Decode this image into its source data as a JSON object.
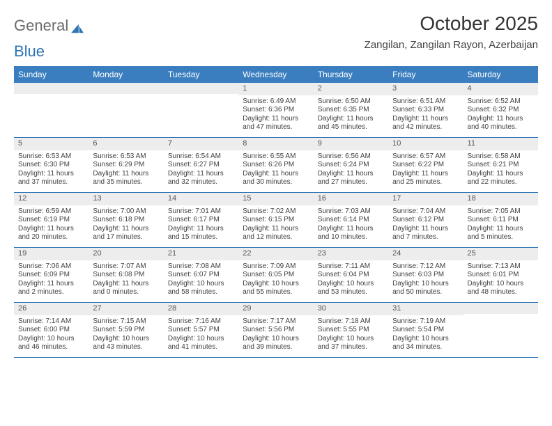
{
  "brand": {
    "part1": "General",
    "part2": "Blue"
  },
  "title": "October 2025",
  "location": "Zangilan, Zangilan Rayon, Azerbaijan",
  "colors": {
    "header_bg": "#3a7ebf",
    "header_text": "#ffffff",
    "daynum_bg": "#ededed",
    "border": "#2f74b5",
    "body_text": "#3f3f3f",
    "title_text": "#333333",
    "logo_gray": "#6b6b6b",
    "logo_blue": "#2f74b5"
  },
  "weekdays": [
    "Sunday",
    "Monday",
    "Tuesday",
    "Wednesday",
    "Thursday",
    "Friday",
    "Saturday"
  ],
  "weeks": [
    [
      {
        "n": "",
        "sr": "",
        "ss": "",
        "dl": ""
      },
      {
        "n": "",
        "sr": "",
        "ss": "",
        "dl": ""
      },
      {
        "n": "",
        "sr": "",
        "ss": "",
        "dl": ""
      },
      {
        "n": "1",
        "sr": "Sunrise: 6:49 AM",
        "ss": "Sunset: 6:36 PM",
        "dl": "Daylight: 11 hours and 47 minutes."
      },
      {
        "n": "2",
        "sr": "Sunrise: 6:50 AM",
        "ss": "Sunset: 6:35 PM",
        "dl": "Daylight: 11 hours and 45 minutes."
      },
      {
        "n": "3",
        "sr": "Sunrise: 6:51 AM",
        "ss": "Sunset: 6:33 PM",
        "dl": "Daylight: 11 hours and 42 minutes."
      },
      {
        "n": "4",
        "sr": "Sunrise: 6:52 AM",
        "ss": "Sunset: 6:32 PM",
        "dl": "Daylight: 11 hours and 40 minutes."
      }
    ],
    [
      {
        "n": "5",
        "sr": "Sunrise: 6:53 AM",
        "ss": "Sunset: 6:30 PM",
        "dl": "Daylight: 11 hours and 37 minutes."
      },
      {
        "n": "6",
        "sr": "Sunrise: 6:53 AM",
        "ss": "Sunset: 6:29 PM",
        "dl": "Daylight: 11 hours and 35 minutes."
      },
      {
        "n": "7",
        "sr": "Sunrise: 6:54 AM",
        "ss": "Sunset: 6:27 PM",
        "dl": "Daylight: 11 hours and 32 minutes."
      },
      {
        "n": "8",
        "sr": "Sunrise: 6:55 AM",
        "ss": "Sunset: 6:26 PM",
        "dl": "Daylight: 11 hours and 30 minutes."
      },
      {
        "n": "9",
        "sr": "Sunrise: 6:56 AM",
        "ss": "Sunset: 6:24 PM",
        "dl": "Daylight: 11 hours and 27 minutes."
      },
      {
        "n": "10",
        "sr": "Sunrise: 6:57 AM",
        "ss": "Sunset: 6:22 PM",
        "dl": "Daylight: 11 hours and 25 minutes."
      },
      {
        "n": "11",
        "sr": "Sunrise: 6:58 AM",
        "ss": "Sunset: 6:21 PM",
        "dl": "Daylight: 11 hours and 22 minutes."
      }
    ],
    [
      {
        "n": "12",
        "sr": "Sunrise: 6:59 AM",
        "ss": "Sunset: 6:19 PM",
        "dl": "Daylight: 11 hours and 20 minutes."
      },
      {
        "n": "13",
        "sr": "Sunrise: 7:00 AM",
        "ss": "Sunset: 6:18 PM",
        "dl": "Daylight: 11 hours and 17 minutes."
      },
      {
        "n": "14",
        "sr": "Sunrise: 7:01 AM",
        "ss": "Sunset: 6:17 PM",
        "dl": "Daylight: 11 hours and 15 minutes."
      },
      {
        "n": "15",
        "sr": "Sunrise: 7:02 AM",
        "ss": "Sunset: 6:15 PM",
        "dl": "Daylight: 11 hours and 12 minutes."
      },
      {
        "n": "16",
        "sr": "Sunrise: 7:03 AM",
        "ss": "Sunset: 6:14 PM",
        "dl": "Daylight: 11 hours and 10 minutes."
      },
      {
        "n": "17",
        "sr": "Sunrise: 7:04 AM",
        "ss": "Sunset: 6:12 PM",
        "dl": "Daylight: 11 hours and 7 minutes."
      },
      {
        "n": "18",
        "sr": "Sunrise: 7:05 AM",
        "ss": "Sunset: 6:11 PM",
        "dl": "Daylight: 11 hours and 5 minutes."
      }
    ],
    [
      {
        "n": "19",
        "sr": "Sunrise: 7:06 AM",
        "ss": "Sunset: 6:09 PM",
        "dl": "Daylight: 11 hours and 2 minutes."
      },
      {
        "n": "20",
        "sr": "Sunrise: 7:07 AM",
        "ss": "Sunset: 6:08 PM",
        "dl": "Daylight: 11 hours and 0 minutes."
      },
      {
        "n": "21",
        "sr": "Sunrise: 7:08 AM",
        "ss": "Sunset: 6:07 PM",
        "dl": "Daylight: 10 hours and 58 minutes."
      },
      {
        "n": "22",
        "sr": "Sunrise: 7:09 AM",
        "ss": "Sunset: 6:05 PM",
        "dl": "Daylight: 10 hours and 55 minutes."
      },
      {
        "n": "23",
        "sr": "Sunrise: 7:11 AM",
        "ss": "Sunset: 6:04 PM",
        "dl": "Daylight: 10 hours and 53 minutes."
      },
      {
        "n": "24",
        "sr": "Sunrise: 7:12 AM",
        "ss": "Sunset: 6:03 PM",
        "dl": "Daylight: 10 hours and 50 minutes."
      },
      {
        "n": "25",
        "sr": "Sunrise: 7:13 AM",
        "ss": "Sunset: 6:01 PM",
        "dl": "Daylight: 10 hours and 48 minutes."
      }
    ],
    [
      {
        "n": "26",
        "sr": "Sunrise: 7:14 AM",
        "ss": "Sunset: 6:00 PM",
        "dl": "Daylight: 10 hours and 46 minutes."
      },
      {
        "n": "27",
        "sr": "Sunrise: 7:15 AM",
        "ss": "Sunset: 5:59 PM",
        "dl": "Daylight: 10 hours and 43 minutes."
      },
      {
        "n": "28",
        "sr": "Sunrise: 7:16 AM",
        "ss": "Sunset: 5:57 PM",
        "dl": "Daylight: 10 hours and 41 minutes."
      },
      {
        "n": "29",
        "sr": "Sunrise: 7:17 AM",
        "ss": "Sunset: 5:56 PM",
        "dl": "Daylight: 10 hours and 39 minutes."
      },
      {
        "n": "30",
        "sr": "Sunrise: 7:18 AM",
        "ss": "Sunset: 5:55 PM",
        "dl": "Daylight: 10 hours and 37 minutes."
      },
      {
        "n": "31",
        "sr": "Sunrise: 7:19 AM",
        "ss": "Sunset: 5:54 PM",
        "dl": "Daylight: 10 hours and 34 minutes."
      },
      {
        "n": "",
        "sr": "",
        "ss": "",
        "dl": ""
      }
    ]
  ]
}
